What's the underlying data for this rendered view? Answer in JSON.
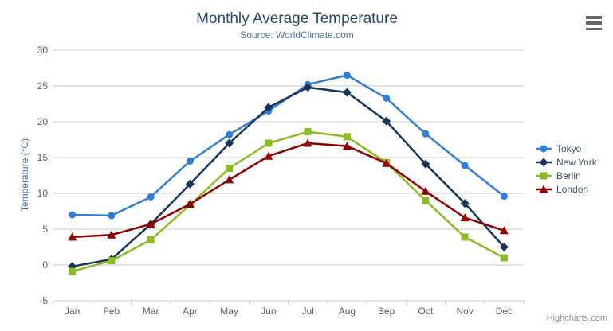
{
  "header": {
    "title": "Monthly Average Temperature",
    "subtitle": "Source: WorldClimate.com"
  },
  "export_menu": {
    "icon": "hamburger-icon"
  },
  "credits": {
    "label": "Highcharts.com"
  },
  "chart_data": {
    "type": "line",
    "title": "Monthly Average Temperature",
    "subtitle": "Source: WorldClimate.com",
    "categories": [
      "Jan",
      "Feb",
      "Mar",
      "Apr",
      "May",
      "Jun",
      "Jul",
      "Aug",
      "Sep",
      "Oct",
      "Nov",
      "Dec"
    ],
    "xlabel": "",
    "ylabel": "Temperature (°C)",
    "ylim": [
      -5,
      30
    ],
    "ytick_step": 5,
    "grid": true,
    "legend_position": "right-middle-vertical",
    "series": [
      {
        "name": "Tokyo",
        "symbol": "circle",
        "color": "#2f7ed8",
        "values": [
          7.0,
          6.9,
          9.5,
          14.5,
          18.2,
          21.5,
          25.2,
          26.5,
          23.3,
          18.3,
          13.9,
          9.6
        ]
      },
      {
        "name": "New York",
        "symbol": "diamond",
        "color": "#17355c",
        "values": [
          -0.2,
          0.8,
          5.7,
          11.3,
          17.0,
          22.0,
          24.8,
          24.1,
          20.1,
          14.1,
          8.6,
          2.5
        ]
      },
      {
        "name": "Berlin",
        "symbol": "square",
        "color": "#8bbc21",
        "values": [
          -0.9,
          0.6,
          3.5,
          8.4,
          13.5,
          17.0,
          18.6,
          17.9,
          14.3,
          9.0,
          3.9,
          1.0
        ]
      },
      {
        "name": "London",
        "symbol": "triangle",
        "color": "#910000",
        "values": [
          3.9,
          4.2,
          5.7,
          8.5,
          11.9,
          15.2,
          17.0,
          16.6,
          14.2,
          10.3,
          6.6,
          4.8
        ]
      }
    ],
    "colors": {
      "title": "#274b6d",
      "subtitle": "#4d759e",
      "axis_label": "#606060",
      "axis_title": "#4572A7",
      "gridline": "#C8C8C8",
      "axis_line": "#C0D0E0",
      "legend_text": "#3E576F",
      "credits": "#909090"
    }
  }
}
